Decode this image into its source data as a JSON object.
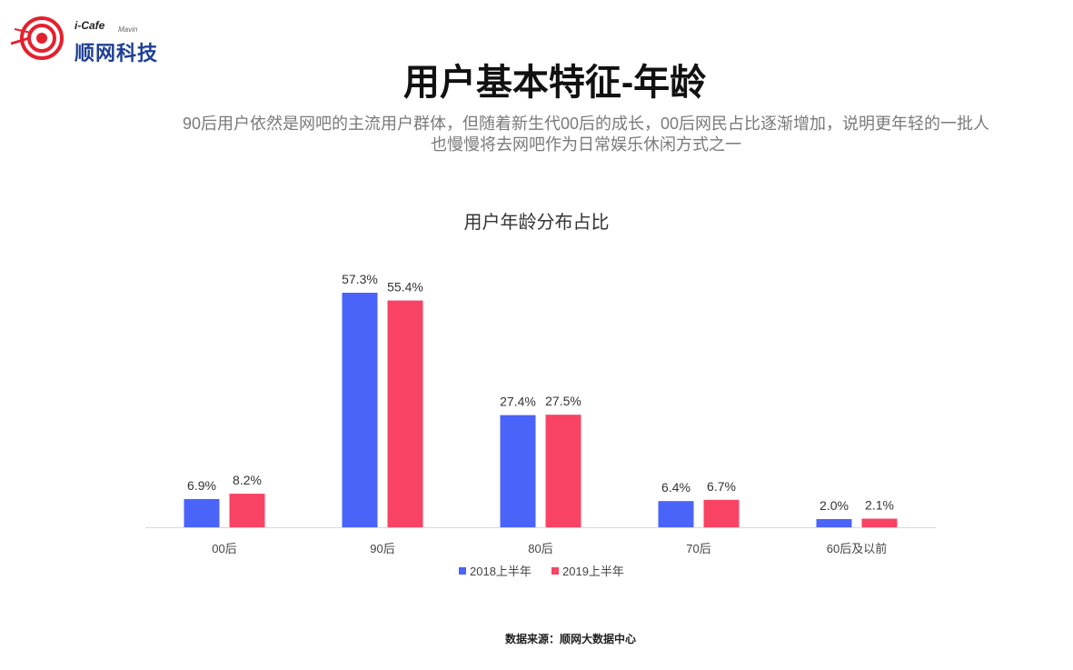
{
  "header": {
    "logo_small": "i-Cafe",
    "logo_mavin": "Mavin",
    "logo_main": "顺网科技",
    "title": "用户基本特征-年龄",
    "subtitle_line1": "90后用户依然是网吧的主流用户群体，但随着新生代00后的成长，00后网民占比逐渐增加，说明更年轻的一批人",
    "subtitle_line2": "也慢慢将去网吧作为日常娱乐休闲方式之一"
  },
  "colors": {
    "series_2018": "#4a63f8",
    "series_2019": "#f84364",
    "logo_red": "#e5202e",
    "logo_blue": "#1f3f94"
  },
  "chart_data": {
    "type": "bar",
    "title": "用户年龄分布占比",
    "categories": [
      "00后",
      "90后",
      "80后",
      "70后",
      "60后及以前"
    ],
    "series": [
      {
        "name": "2018上半年",
        "values": [
          6.9,
          57.3,
          27.4,
          6.4,
          2.0
        ],
        "labels": [
          "6.9%",
          "57.3%",
          "27.4%",
          "6.4%",
          "2.0%"
        ]
      },
      {
        "name": "2019上半年",
        "values": [
          8.2,
          55.4,
          27.5,
          6.7,
          2.1
        ],
        "labels": [
          "8.2%",
          "55.4%",
          "27.5%",
          "6.7%",
          "2.1%"
        ]
      }
    ],
    "ylim": [
      0,
      57.3
    ],
    "grid": false,
    "legend": "bottom"
  },
  "footer": {
    "source": "数据来源：顺网大数据中心"
  }
}
